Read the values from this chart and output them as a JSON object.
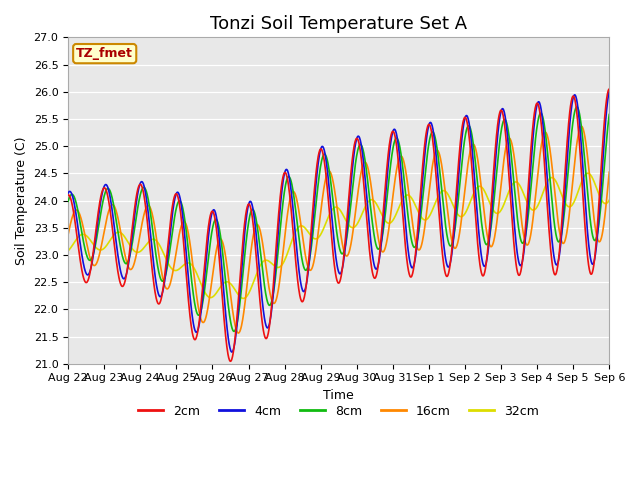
{
  "title": "Tonzi Soil Temperature Set A",
  "xlabel": "Time",
  "ylabel": "Soil Temperature (C)",
  "ylim": [
    21.0,
    27.0
  ],
  "yticks": [
    21.0,
    21.5,
    22.0,
    22.5,
    23.0,
    23.5,
    24.0,
    24.5,
    25.0,
    25.5,
    26.0,
    26.5,
    27.0
  ],
  "xtick_labels": [
    "Aug 22",
    "Aug 23",
    "Aug 24",
    "Aug 25",
    "Aug 26",
    "Aug 27",
    "Aug 28",
    "Aug 29",
    "Aug 30",
    "Aug 31",
    "Sep 1",
    "Sep 2",
    "Sep 3",
    "Sep 4",
    "Sep 5",
    "Sep 6"
  ],
  "legend_label": "TZ_fmet",
  "legend_box_facecolor": "#ffffcc",
  "legend_box_edgecolor": "#cc8800",
  "line_colors": {
    "2cm": "#ee1111",
    "4cm": "#1111dd",
    "8cm": "#11bb11",
    "16cm": "#ff8800",
    "32cm": "#dddd00"
  },
  "line_labels": [
    "2cm",
    "4cm",
    "8cm",
    "16cm",
    "32cm"
  ],
  "background_color": "#e8e8e8",
  "plot_bg_color": "#e8e8e8",
  "title_fontsize": 13,
  "axis_label_fontsize": 9,
  "tick_fontsize": 8
}
